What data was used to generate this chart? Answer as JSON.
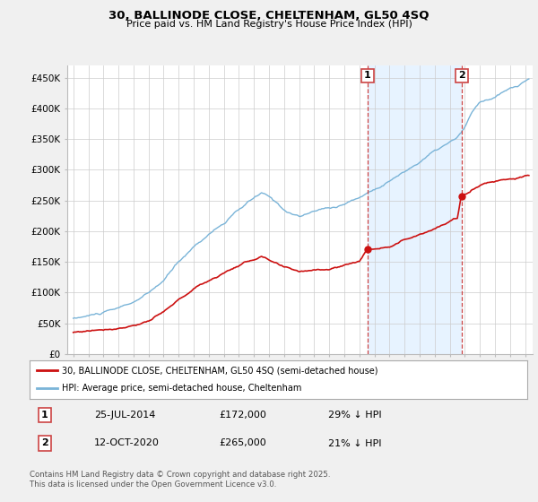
{
  "title1": "30, BALLINODE CLOSE, CHELTENHAM, GL50 4SQ",
  "title2": "Price paid vs. HM Land Registry's House Price Index (HPI)",
  "ylim": [
    0,
    470000
  ],
  "yticks": [
    0,
    50000,
    100000,
    150000,
    200000,
    250000,
    300000,
    350000,
    400000,
    450000
  ],
  "ytick_labels": [
    "£0",
    "£50K",
    "£100K",
    "£150K",
    "£200K",
    "£250K",
    "£300K",
    "£350K",
    "£400K",
    "£450K"
  ],
  "hpi_color": "#7ab4d8",
  "price_color": "#cc1111",
  "vline_color": "#cc4444",
  "shade_color": "#ddeeff",
  "purchase1_date": "25-JUL-2014",
  "purchase1_price": 172000,
  "purchase1_pct": "29% ↓ HPI",
  "purchase2_date": "12-OCT-2020",
  "purchase2_price": 265000,
  "purchase2_pct": "21% ↓ HPI",
  "legend_label1": "30, BALLINODE CLOSE, CHELTENHAM, GL50 4SQ (semi-detached house)",
  "legend_label2": "HPI: Average price, semi-detached house, Cheltenham",
  "footnote": "Contains HM Land Registry data © Crown copyright and database right 2025.\nThis data is licensed under the Open Government Licence v3.0.",
  "bg_color": "#f0f0f0",
  "plot_bg_color": "#ffffff",
  "p1_year": 2014.54,
  "p2_year": 2020.79
}
